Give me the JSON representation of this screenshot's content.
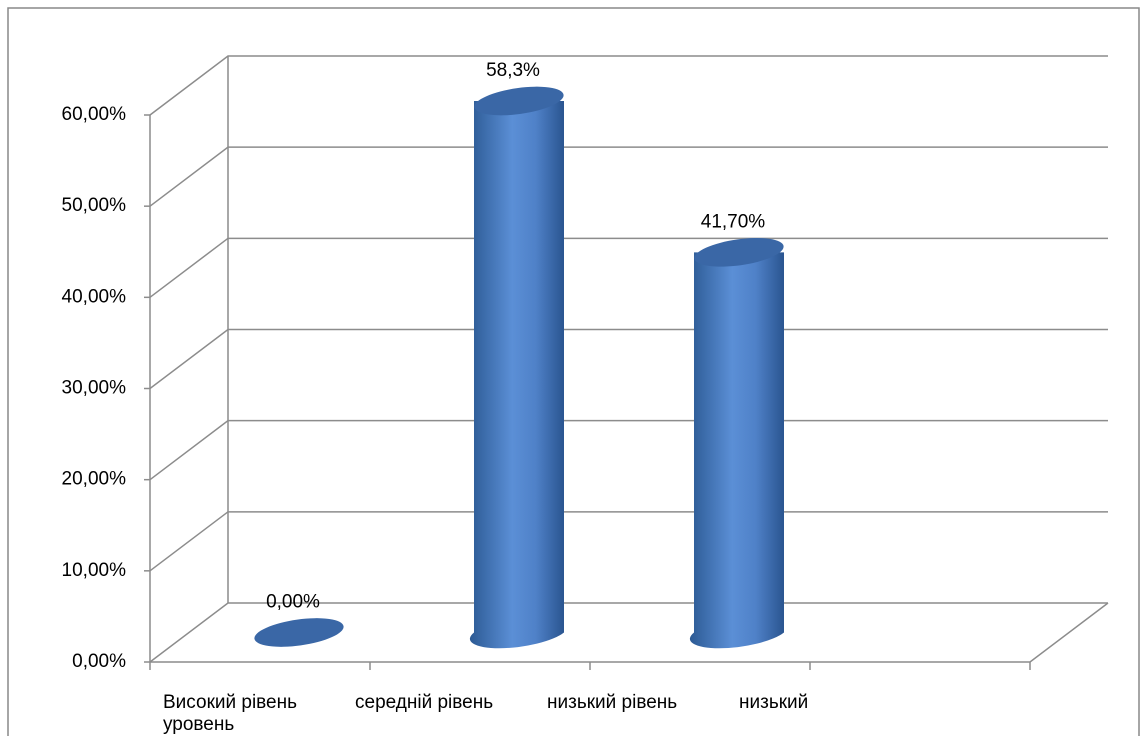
{
  "chart_data": {
    "type": "bar3d",
    "categories": [
      "Високий рівень уровень",
      "середній рівень",
      "низький рівень",
      "низький"
    ],
    "values": [
      0,
      58.3,
      41.7,
      null
    ],
    "value_labels": [
      "0,00%",
      "58,3%",
      "41,70%",
      null
    ],
    "color": "#4f81bd",
    "ylim": [
      0,
      60
    ],
    "yticks": [
      {
        "value": 0,
        "label": "0,00%"
      },
      {
        "value": 10,
        "label": "10,00%"
      },
      {
        "value": 20,
        "label": "20,00%"
      },
      {
        "value": 30,
        "label": "30,00%"
      },
      {
        "value": 40,
        "label": "40,00%"
      },
      {
        "value": 50,
        "label": "50,00%"
      },
      {
        "value": 60,
        "label": "60,00%"
      }
    ],
    "grid": true
  }
}
